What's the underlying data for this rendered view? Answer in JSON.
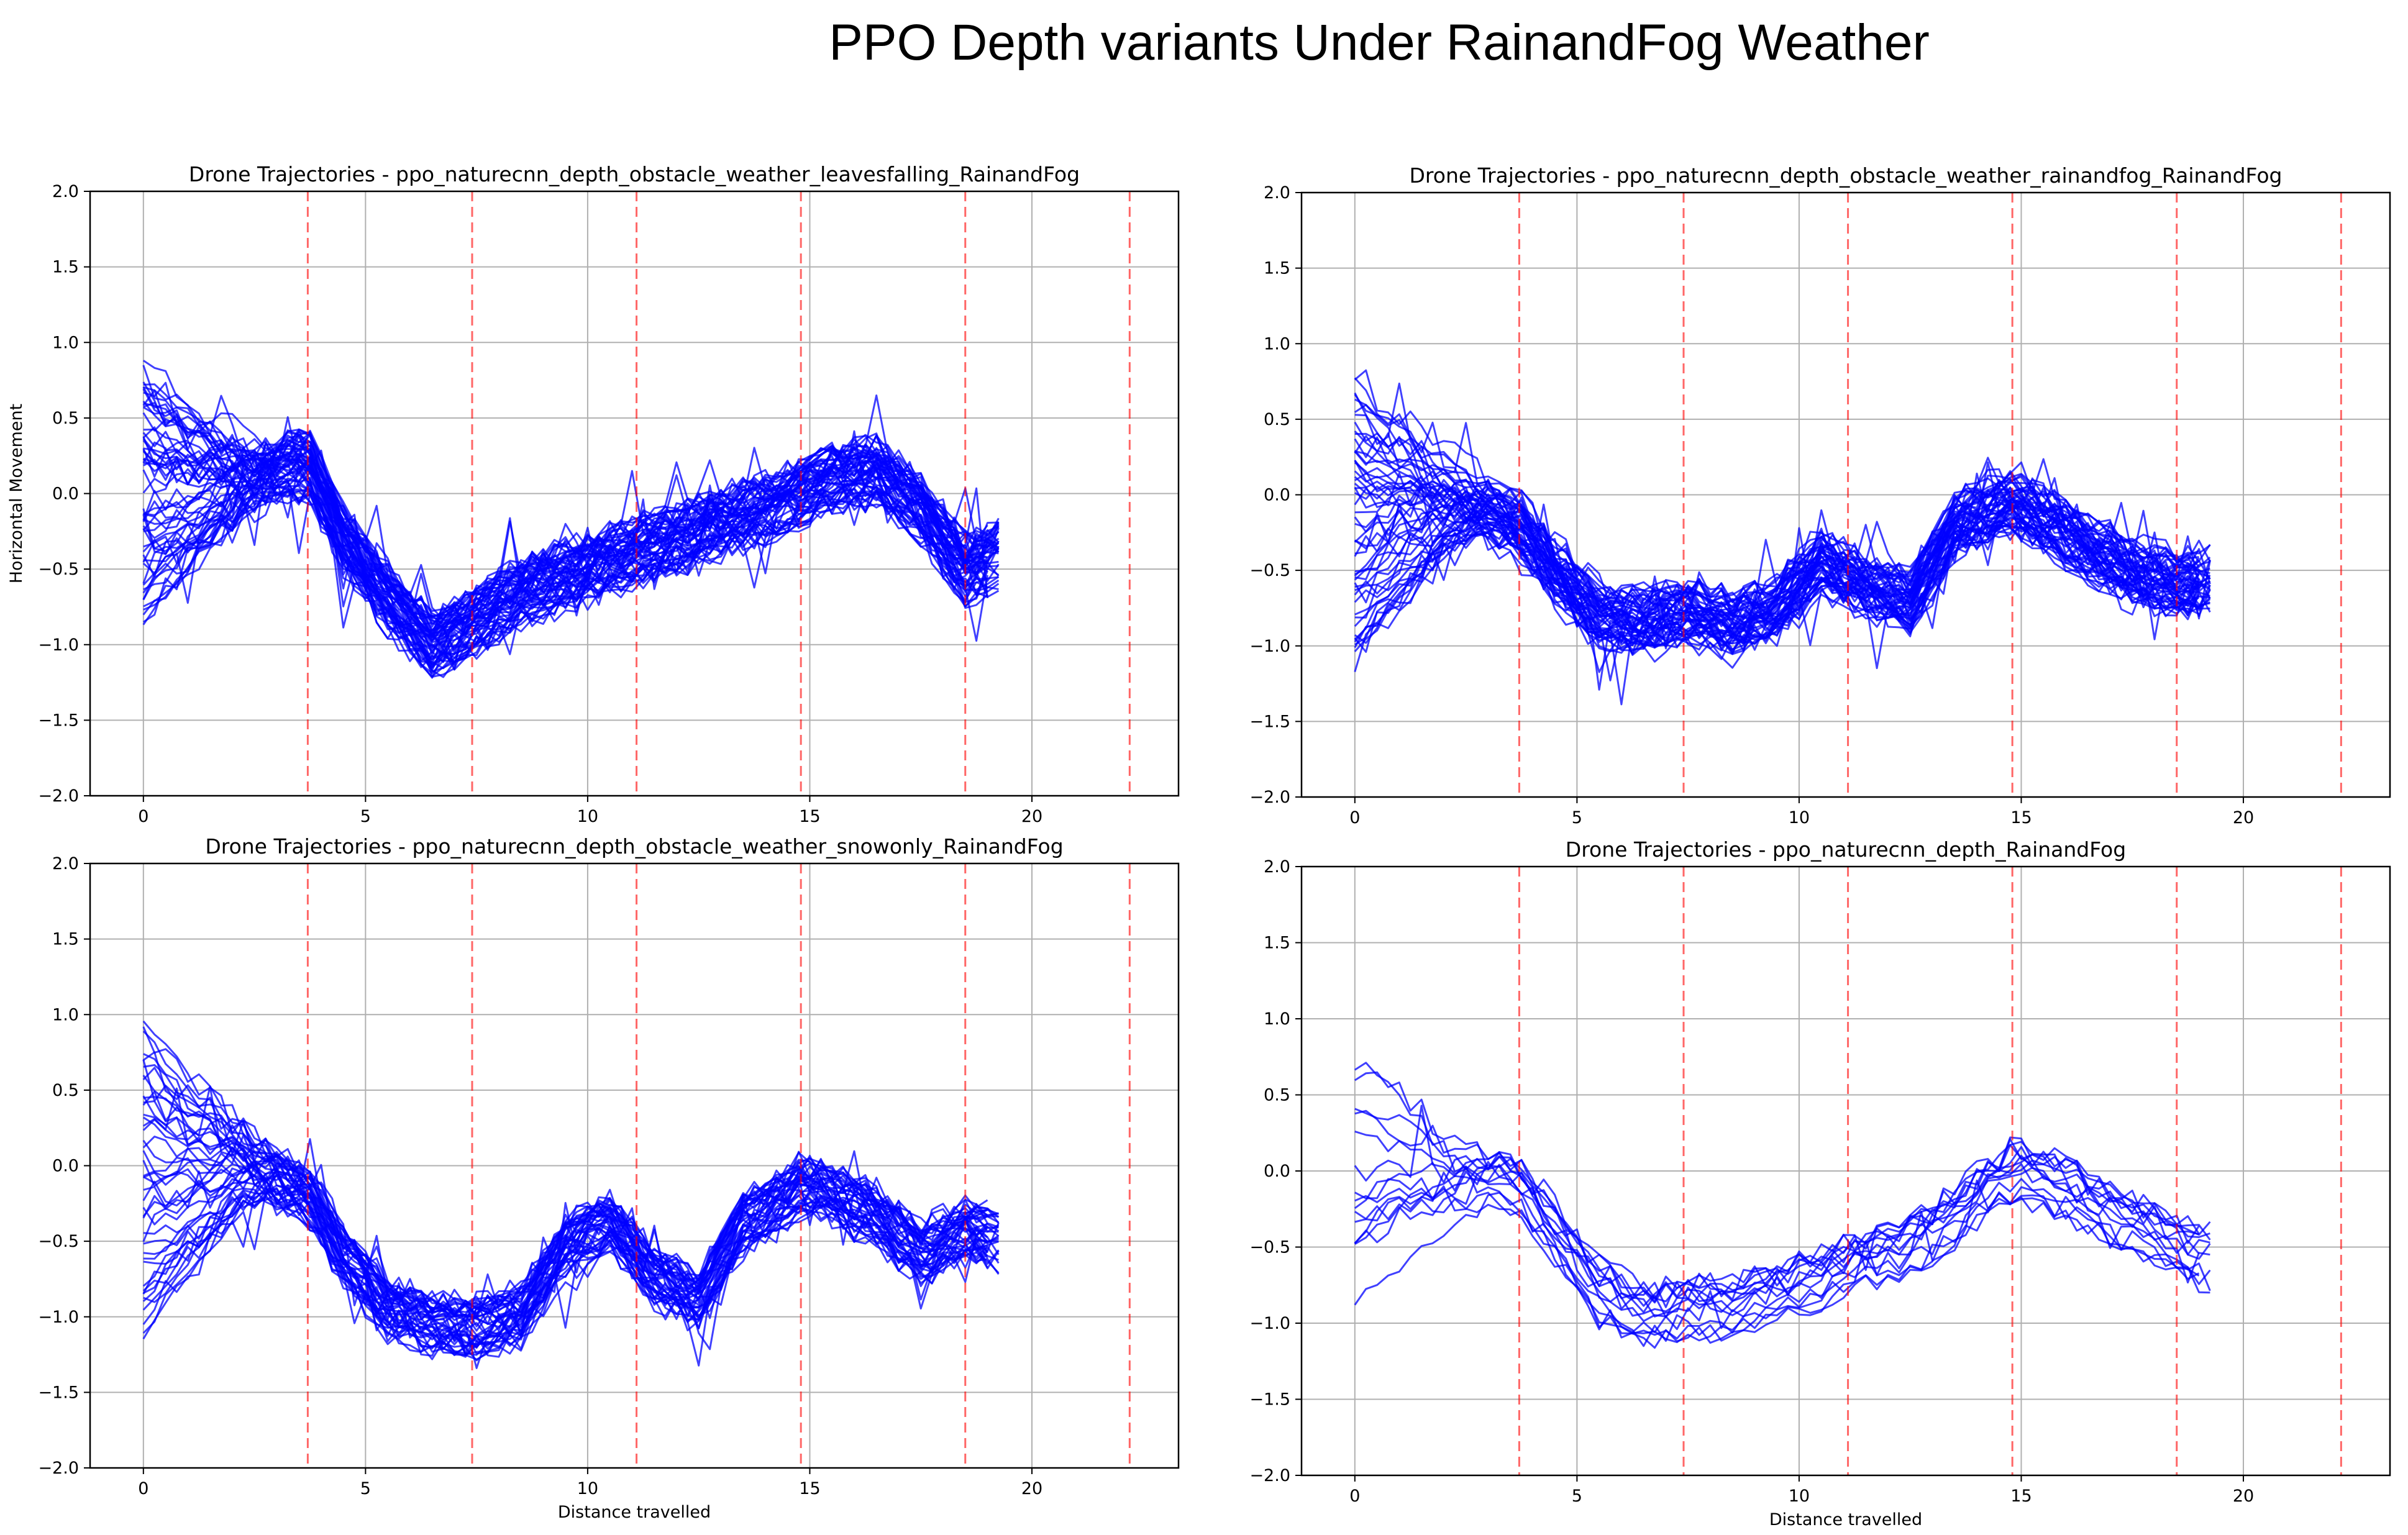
{
  "figure_title": "PPO Depth variants Under  RainandFog Weather",
  "chart_data": [
    {
      "type": "line",
      "title": "Drone Trajectories - ppo_naturecnn_depth_obstacle_weather_leavesfalling_RainandFog",
      "xlabel": "",
      "ylabel": "Horizontal Movement",
      "xlim": [
        -1.2,
        23.3
      ],
      "ylim": [
        -2.0,
        2.0
      ],
      "xticks": [
        0,
        5,
        10,
        15,
        20
      ],
      "yticks": [
        -2.0,
        -1.5,
        -1.0,
        -0.5,
        0.0,
        0.5,
        1.0,
        1.5,
        2.0
      ],
      "grid": true,
      "line_color": "#0000ff",
      "vline_color": "#ff0000",
      "vlines": [
        3.7,
        7.4,
        11.1,
        14.8,
        18.5,
        22.2
      ],
      "trajectory_count": 60,
      "x_end": 19.5,
      "mean_path": [
        [
          0,
          0.0
        ],
        [
          1,
          0.05
        ],
        [
          2,
          0.1
        ],
        [
          3,
          0.15
        ],
        [
          3.7,
          0.2
        ],
        [
          4.5,
          -0.3
        ],
        [
          5.5,
          -0.7
        ],
        [
          6.5,
          -1.0
        ],
        [
          7.4,
          -0.85
        ],
        [
          8.5,
          -0.65
        ],
        [
          9.5,
          -0.55
        ],
        [
          10.5,
          -0.45
        ],
        [
          11.5,
          -0.35
        ],
        [
          12.5,
          -0.25
        ],
        [
          13.5,
          -0.15
        ],
        [
          14.8,
          0.0
        ],
        [
          15.5,
          0.1
        ],
        [
          16.5,
          0.15
        ],
        [
          17.5,
          -0.1
        ],
        [
          18.5,
          -0.5
        ],
        [
          19.5,
          -0.35
        ]
      ],
      "start_range": [
        -0.9,
        0.9
      ]
    },
    {
      "type": "line",
      "title": "Drone Trajectories - ppo_naturecnn_depth_obstacle_weather_rainandfog_RainandFog",
      "xlabel": "",
      "ylabel": "",
      "xlim": [
        -1.2,
        23.3
      ],
      "ylim": [
        -2.0,
        2.0
      ],
      "xticks": [
        0,
        5,
        10,
        15,
        20
      ],
      "yticks": [
        -2.0,
        -1.5,
        -1.0,
        -0.5,
        0.0,
        0.5,
        1.0,
        1.5,
        2.0
      ],
      "grid": true,
      "line_color": "#0000ff",
      "vline_color": "#ff0000",
      "vlines": [
        3.7,
        7.4,
        11.1,
        14.8,
        18.5,
        22.2
      ],
      "trajectory_count": 55,
      "x_end": 19.5,
      "mean_path": [
        [
          0,
          -0.2
        ],
        [
          1,
          0.0
        ],
        [
          2,
          -0.05
        ],
        [
          3,
          -0.1
        ],
        [
          3.7,
          -0.2
        ],
        [
          4.5,
          -0.5
        ],
        [
          5.5,
          -0.8
        ],
        [
          6.5,
          -0.85
        ],
        [
          7.4,
          -0.75
        ],
        [
          8.5,
          -0.85
        ],
        [
          9.5,
          -0.75
        ],
        [
          10.5,
          -0.45
        ],
        [
          11.5,
          -0.6
        ],
        [
          12.5,
          -0.7
        ],
        [
          13.5,
          -0.2
        ],
        [
          14.8,
          -0.05
        ],
        [
          15.5,
          -0.15
        ],
        [
          16.5,
          -0.35
        ],
        [
          17.5,
          -0.5
        ],
        [
          18.5,
          -0.6
        ],
        [
          19.5,
          -0.55
        ]
      ],
      "start_range": [
        -1.1,
        0.8
      ]
    },
    {
      "type": "line",
      "title": "Drone Trajectories - ppo_naturecnn_depth_obstacle_weather_snowonly_RainandFog",
      "xlabel": "Distance travelled",
      "ylabel": "",
      "xlim": [
        -1.2,
        23.3
      ],
      "ylim": [
        -2.0,
        2.0
      ],
      "xticks": [
        0,
        5,
        10,
        15,
        20
      ],
      "yticks": [
        -2.0,
        -1.5,
        -1.0,
        -0.5,
        0.0,
        0.5,
        1.0,
        1.5,
        2.0
      ],
      "grid": true,
      "line_color": "#0000ff",
      "vline_color": "#ff0000",
      "vlines": [
        3.7,
        7.4,
        11.1,
        14.8,
        18.5,
        22.2
      ],
      "trajectory_count": 45,
      "x_end": 19.5,
      "mean_path": [
        [
          0,
          -0.2
        ],
        [
          1,
          -0.1
        ],
        [
          2,
          0.0
        ],
        [
          3,
          -0.1
        ],
        [
          3.7,
          -0.2
        ],
        [
          4.5,
          -0.6
        ],
        [
          5.5,
          -0.95
        ],
        [
          6.5,
          -1.05
        ],
        [
          7.4,
          -1.1
        ],
        [
          8.5,
          -1.0
        ],
        [
          9.5,
          -0.55
        ],
        [
          10.5,
          -0.4
        ],
        [
          11.5,
          -0.75
        ],
        [
          12.5,
          -0.9
        ],
        [
          13.5,
          -0.4
        ],
        [
          14.8,
          -0.15
        ],
        [
          15.5,
          -0.2
        ],
        [
          16.5,
          -0.35
        ],
        [
          17.5,
          -0.6
        ],
        [
          18.5,
          -0.45
        ],
        [
          19.5,
          -0.5
        ]
      ],
      "start_range": [
        -1.1,
        0.9
      ]
    },
    {
      "type": "line",
      "title": "Drone Trajectories - ppo_naturecnn_depth_RainandFog",
      "xlabel": "Distance travelled",
      "ylabel": "",
      "xlim": [
        -1.2,
        23.3
      ],
      "ylim": [
        -2.0,
        2.0
      ],
      "xticks": [
        0,
        5,
        10,
        15,
        20
      ],
      "yticks": [
        -2.0,
        -1.5,
        -1.0,
        -0.5,
        0.0,
        0.5,
        1.0,
        1.5,
        2.0
      ],
      "grid": true,
      "line_color": "#0000ff",
      "vline_color": "#ff0000",
      "vlines": [
        3.7,
        7.4,
        11.1,
        14.8,
        18.5,
        22.2
      ],
      "trajectory_count": 15,
      "x_end": 19.5,
      "mean_path": [
        [
          0,
          0.0
        ],
        [
          1,
          0.05
        ],
        [
          2,
          -0.05
        ],
        [
          3,
          -0.05
        ],
        [
          3.7,
          -0.1
        ],
        [
          4.5,
          -0.4
        ],
        [
          5.5,
          -0.8
        ],
        [
          6.5,
          -0.95
        ],
        [
          7.4,
          -0.9
        ],
        [
          8.5,
          -0.9
        ],
        [
          9.5,
          -0.8
        ],
        [
          10.5,
          -0.7
        ],
        [
          11.5,
          -0.55
        ],
        [
          12.5,
          -0.5
        ],
        [
          13.5,
          -0.3
        ],
        [
          14.8,
          0.0
        ],
        [
          15.5,
          -0.05
        ],
        [
          16.5,
          -0.2
        ],
        [
          17.5,
          -0.35
        ],
        [
          18.5,
          -0.5
        ],
        [
          19.5,
          -0.6
        ]
      ],
      "start_range": [
        -0.9,
        0.8
      ]
    }
  ]
}
